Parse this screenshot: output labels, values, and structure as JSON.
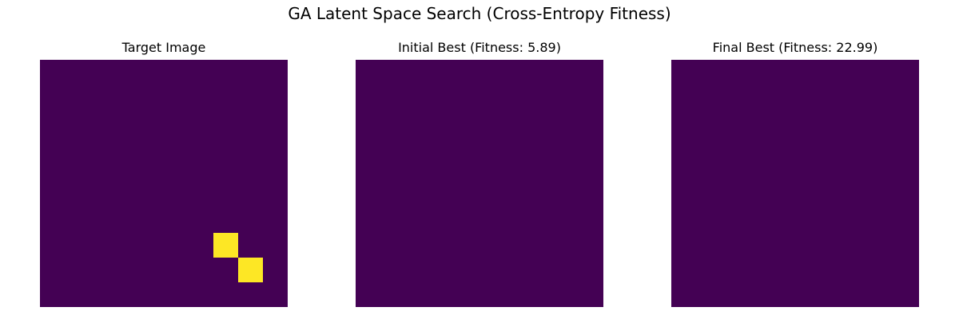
{
  "figure": {
    "title": "GA Latent Space Search (Cross-Entropy Fitness)"
  },
  "colors": {
    "background_cell": "#440154",
    "active_cell": "#fde725"
  },
  "chart_data": [
    {
      "type": "heatmap",
      "title": "Target Image",
      "colormap": "viridis",
      "axes_visible": false,
      "grid": false,
      "shape": [
        10,
        10
      ],
      "values": [
        [
          0,
          0,
          0,
          0,
          0,
          0,
          0,
          0,
          0,
          0
        ],
        [
          0,
          0,
          0,
          0,
          0,
          0,
          0,
          0,
          0,
          0
        ],
        [
          0,
          0,
          0,
          0,
          0,
          0,
          0,
          0,
          0,
          0
        ],
        [
          0,
          0,
          0,
          0,
          0,
          0,
          0,
          0,
          0,
          0
        ],
        [
          0,
          0,
          0,
          0,
          0,
          0,
          0,
          0,
          0,
          0
        ],
        [
          0,
          0,
          0,
          0,
          0,
          0,
          0,
          0,
          0,
          0
        ],
        [
          0,
          0,
          0,
          0,
          0,
          0,
          0,
          0,
          0,
          0
        ],
        [
          0,
          0,
          0,
          0,
          0,
          0,
          0,
          1,
          0,
          0
        ],
        [
          0,
          0,
          0,
          0,
          0,
          0,
          0,
          0,
          1,
          0
        ],
        [
          0,
          0,
          0,
          0,
          0,
          0,
          0,
          0,
          0,
          0
        ]
      ]
    },
    {
      "type": "heatmap",
      "title": "Initial Best (Fitness: 5.89)",
      "colormap": "viridis",
      "axes_visible": false,
      "grid": false,
      "shape": [
        10,
        10
      ],
      "values": [
        [
          0,
          0,
          0,
          0,
          0,
          0,
          0,
          0,
          0,
          0
        ],
        [
          0,
          0,
          0,
          0,
          0,
          0,
          0,
          0,
          0,
          0
        ],
        [
          0,
          0,
          0,
          0,
          0,
          0,
          0,
          0,
          0,
          0
        ],
        [
          0,
          0,
          0,
          0,
          0,
          0,
          0,
          0,
          0,
          0
        ],
        [
          0,
          0,
          0,
          0,
          0,
          0,
          0,
          0,
          0,
          0
        ],
        [
          0,
          0,
          0,
          0,
          0,
          0,
          0,
          0,
          0,
          0
        ],
        [
          0,
          0,
          0,
          0,
          0,
          0,
          0,
          0,
          0,
          0
        ],
        [
          0,
          0,
          0,
          0,
          0,
          0,
          0,
          0,
          0,
          0
        ],
        [
          0,
          0,
          0,
          0,
          0,
          0,
          0,
          0,
          0,
          0
        ],
        [
          0,
          0,
          0,
          0,
          0,
          0,
          0,
          0,
          0,
          0
        ]
      ]
    },
    {
      "type": "heatmap",
      "title": "Final Best (Fitness: 22.99)",
      "colormap": "viridis",
      "axes_visible": false,
      "grid": false,
      "shape": [
        10,
        10
      ],
      "values": [
        [
          0,
          0,
          0,
          0,
          0,
          0,
          0,
          0,
          0,
          0
        ],
        [
          0,
          0,
          0,
          0,
          0,
          0,
          0,
          0,
          0,
          0
        ],
        [
          0,
          0,
          0,
          0,
          0,
          0,
          0,
          0,
          0,
          0
        ],
        [
          0,
          0,
          0,
          0,
          0,
          0,
          0,
          0,
          0,
          0
        ],
        [
          0,
          0,
          0,
          0,
          0,
          0,
          0,
          0,
          0,
          0
        ],
        [
          0,
          0,
          0,
          0,
          0,
          0,
          0,
          0,
          0,
          0
        ],
        [
          0,
          0,
          0,
          0,
          0,
          0,
          0,
          0,
          0,
          0
        ],
        [
          0,
          0,
          0,
          0,
          0,
          0,
          0,
          0,
          0,
          0
        ],
        [
          0,
          0,
          0,
          0,
          0,
          0,
          0,
          0,
          0,
          0
        ],
        [
          0,
          0,
          0,
          0,
          0,
          0,
          0,
          0,
          0,
          0
        ]
      ]
    }
  ]
}
